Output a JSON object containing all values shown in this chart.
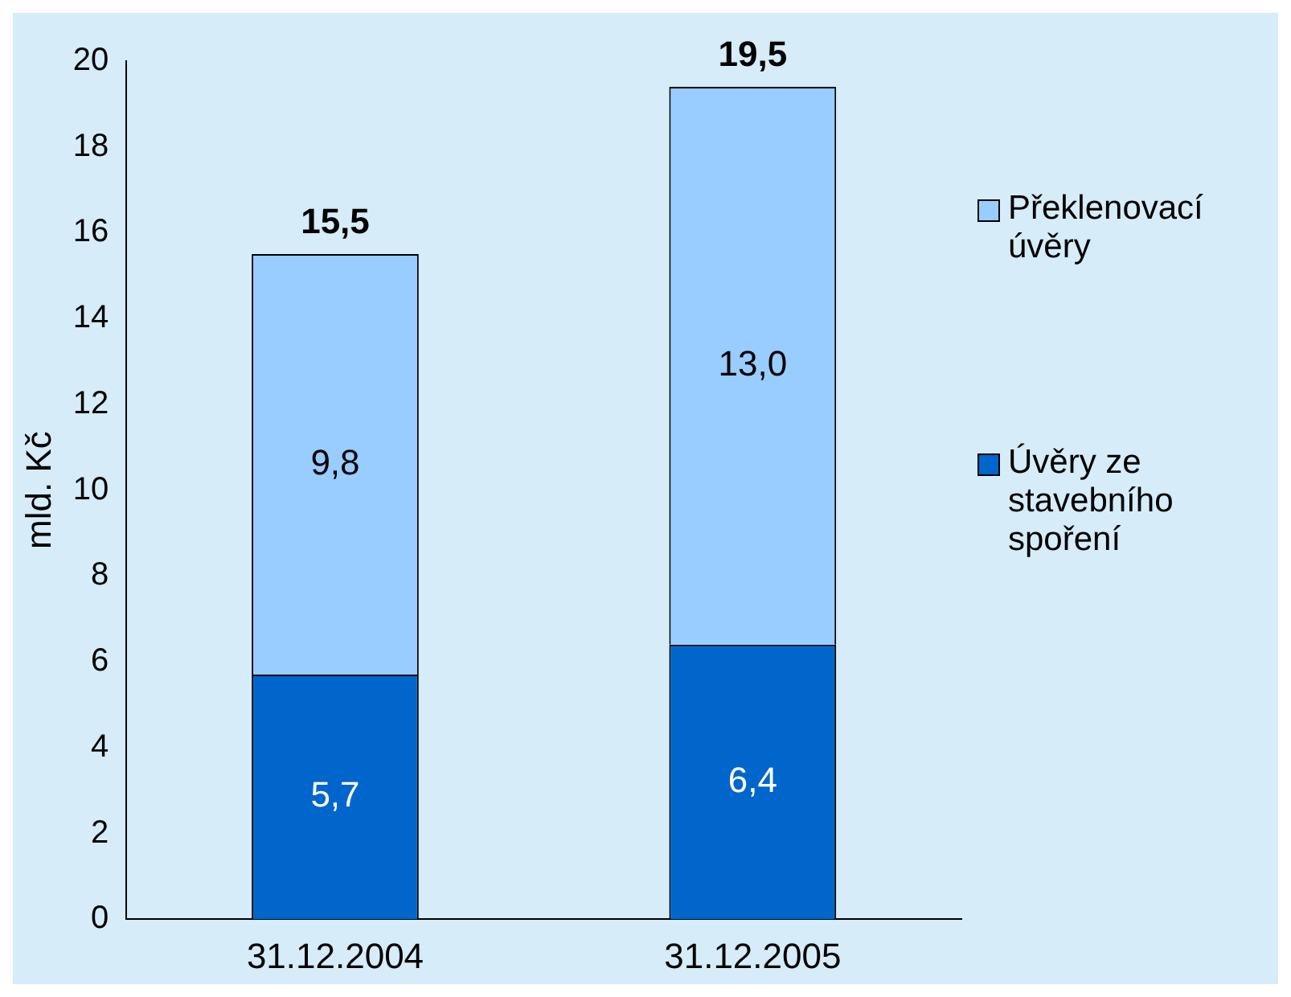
{
  "chart_data": {
    "type": "bar",
    "stacked": true,
    "categories": [
      "31.12.2004",
      "31.12.2005"
    ],
    "ylabel": "mld. Kč",
    "ylim": [
      0,
      20
    ],
    "yticks": [
      0,
      2,
      4,
      6,
      8,
      10,
      12,
      14,
      16,
      18,
      20
    ],
    "grid": false,
    "legend": "right",
    "totals": [
      "15,5",
      "19,5"
    ],
    "series": [
      {
        "name": "Úvěry ze stavebního spoření",
        "color": "#0066cc",
        "values": [
          5.7,
          6.4
        ],
        "value_labels": [
          "5,7",
          "6,4"
        ]
      },
      {
        "name": "Překlenovací úvěry",
        "color": "#99ccff",
        "values": [
          9.8,
          13.0
        ],
        "value_labels": [
          "9,8",
          "13,0"
        ]
      }
    ]
  }
}
